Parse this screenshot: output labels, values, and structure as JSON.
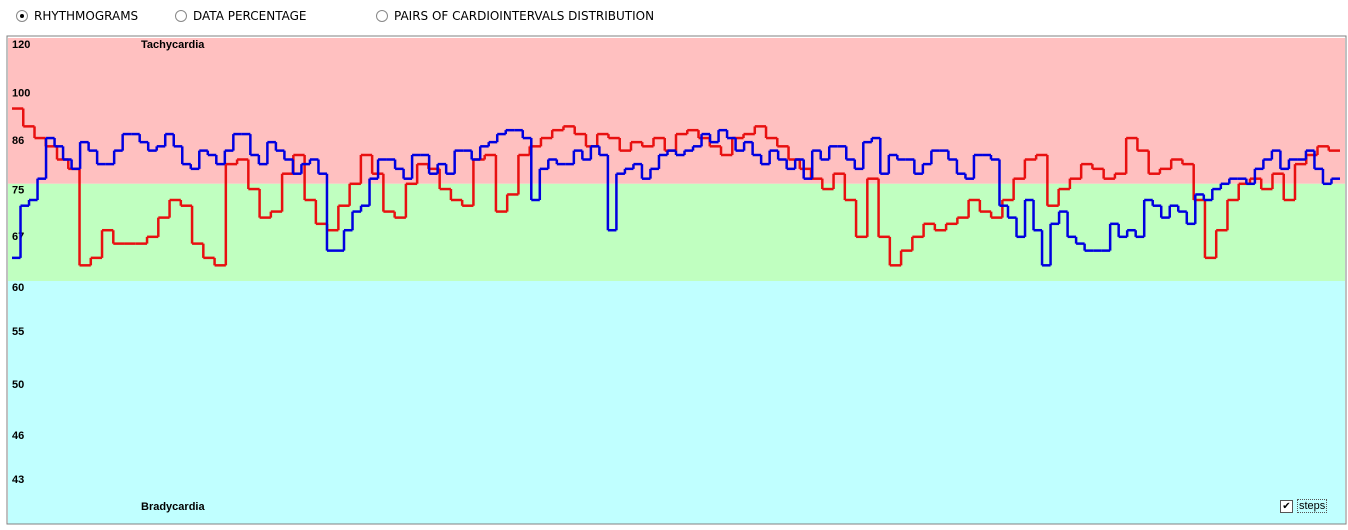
{
  "modes": [
    "RHYTHMOGRAMS",
    "DATA PERCENTAGE",
    "PAIRS OF CARDIOINTERVALS DISTRIBUTION"
  ],
  "selected_mode": 0,
  "steps_checkbox": {
    "label": "steps",
    "checked": true
  },
  "chart_data": {
    "type": "line",
    "ylim": [
      40,
      120
    ],
    "yscale": "reciprocal",
    "yticks": [
      120,
      100,
      86,
      75,
      67,
      60,
      55,
      50,
      46,
      43
    ],
    "zones": [
      {
        "name": "Tachycardia",
        "from": 75,
        "to": 120,
        "color": "#ffc0c0"
      },
      {
        "from": 60,
        "to": 75,
        "color": "#c0ffc0"
      },
      {
        "name": "Bradycardia",
        "from": 40,
        "to": 60,
        "color": "#c0ffff"
      }
    ],
    "series": [
      {
        "color": "#e81010",
        "values": [
          93,
          88,
          85,
          83,
          80,
          78,
          62,
          63,
          67,
          65,
          65,
          65,
          66,
          69,
          72,
          71,
          65,
          63,
          62,
          79,
          80,
          74,
          69,
          70,
          77,
          81,
          72,
          68,
          67,
          71,
          75,
          81,
          77,
          70,
          69,
          75,
          79,
          78,
          74,
          72,
          71,
          80,
          81,
          70,
          73,
          81,
          83,
          85,
          87,
          88,
          86,
          83,
          86,
          85,
          82,
          84,
          83,
          85,
          82,
          86,
          87,
          85,
          83,
          81,
          85,
          86,
          88,
          85,
          83,
          80,
          78,
          76,
          74,
          77,
          72,
          66,
          76,
          66,
          62,
          64,
          66,
          68,
          67,
          68,
          69,
          72,
          70,
          69,
          72,
          76,
          80,
          81,
          71,
          74,
          76,
          79,
          78,
          76,
          77,
          85,
          82,
          77,
          78,
          80,
          79,
          72,
          63,
          67,
          72,
          75,
          76,
          74,
          77,
          72,
          79,
          81,
          83,
          82
        ]
      },
      {
        "color": "#0000e0",
        "values": [
          63,
          71,
          72,
          76,
          85,
          83,
          80,
          78,
          84,
          82,
          79,
          79,
          82,
          86,
          86,
          84,
          82,
          83,
          86,
          83,
          79,
          78,
          82,
          81,
          79,
          82,
          86,
          86,
          81,
          79,
          84,
          82,
          80,
          77,
          79,
          80,
          77,
          64,
          64,
          67,
          70,
          71,
          76,
          80,
          80,
          78,
          76,
          81,
          81,
          77,
          79,
          77,
          82,
          82,
          80,
          83,
          84,
          86,
          87,
          87,
          85,
          72,
          78,
          80,
          79,
          79,
          82,
          80,
          83,
          81,
          67,
          77,
          78,
          79,
          76,
          78,
          81,
          82,
          81,
          82,
          83,
          86,
          84,
          87,
          85,
          82,
          84,
          81,
          79,
          82,
          80,
          78,
          80,
          76,
          82,
          80,
          83,
          83,
          80,
          78,
          84,
          85,
          77,
          81,
          80,
          80,
          77,
          79,
          82,
          82,
          80,
          77,
          76,
          81,
          81,
          80,
          71,
          69,
          66,
          72,
          67,
          62,
          68,
          70,
          66,
          65,
          64,
          64,
          64,
          68,
          66,
          67,
          66,
          72,
          71,
          69,
          71,
          70,
          68,
          73,
          72,
          74,
          75,
          76,
          76,
          75,
          78,
          80,
          82,
          78,
          80,
          80,
          82,
          78,
          75,
          76
        ]
      }
    ]
  }
}
